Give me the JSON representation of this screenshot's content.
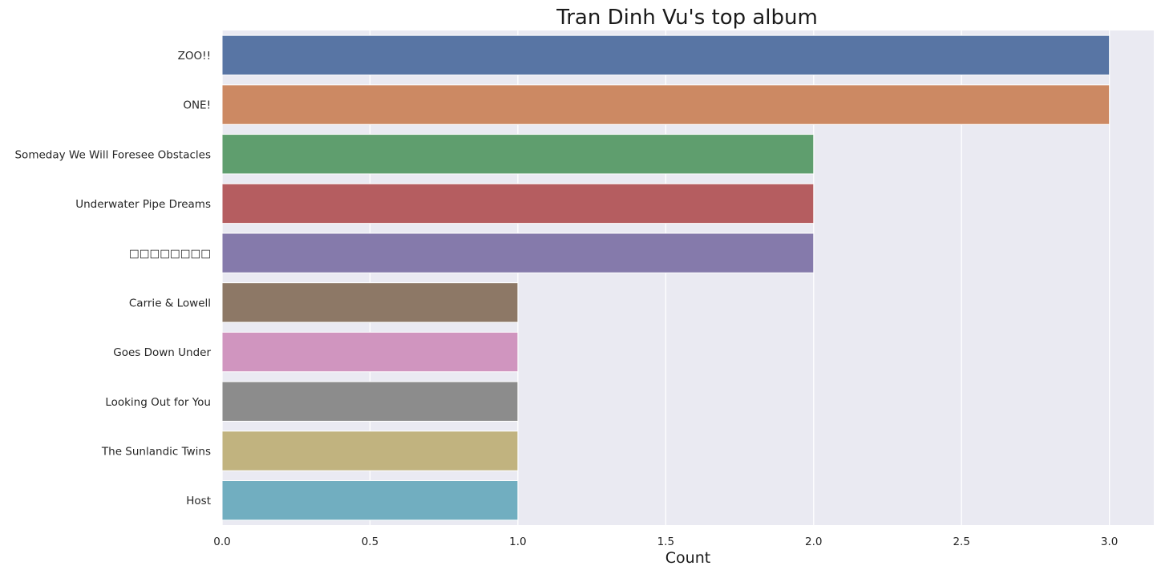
{
  "chart_data": {
    "type": "bar",
    "orientation": "horizontal",
    "title": "Tran Dinh Vu's top album",
    "xlabel": "Count",
    "ylabel": "",
    "categories": [
      "ZOO!!",
      "ONE!",
      "Someday We Will Foresee Obstacles",
      "Underwater Pipe Dreams",
      "□□□□□□□□",
      "Carrie & Lowell",
      "Goes Down Under",
      "Looking Out for You",
      "The Sunlandic Twins",
      "Host"
    ],
    "values": [
      3,
      3,
      2,
      2,
      2,
      1,
      1,
      1,
      1,
      1
    ],
    "colors": [
      "#5875a4",
      "#cc8963",
      "#5f9e6e",
      "#b55d60",
      "#857aab",
      "#8d7866",
      "#d095bf",
      "#8c8c8c",
      "#c1b37f",
      "#71aec0"
    ],
    "xlim": [
      0,
      3.15
    ],
    "xticks": [
      "0.0",
      "0.5",
      "1.0",
      "1.5",
      "2.0",
      "2.5",
      "3.0"
    ],
    "xtick_values": [
      0,
      0.5,
      1.0,
      1.5,
      2.0,
      2.5,
      3.0
    ],
    "grid": true,
    "background": "#eaeaf2",
    "legend": "none"
  }
}
